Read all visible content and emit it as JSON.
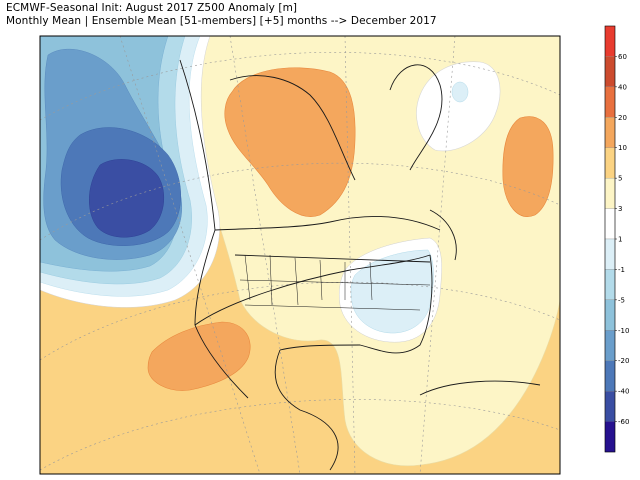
{
  "header": {
    "title_line1": "ECMWF-Seasonal Init: August 2017 Z500 Anomaly [m]",
    "title_line2": "Monthly Mean | Ensemble Mean [51-members] [+5] months --> December 2017"
  },
  "colorbar": {
    "segments": [
      {
        "label": "60",
        "color": "#cc4b2e"
      },
      {
        "label": "40",
        "color": "#e8703f"
      },
      {
        "label": "20",
        "color": "#f4a75d"
      },
      {
        "label": "10",
        "color": "#fbd383"
      },
      {
        "label": "5",
        "color": "#fdf5c6"
      },
      {
        "label": "3",
        "color": "#ffffff"
      },
      {
        "label": "1",
        "color": "#dceff7"
      },
      {
        "label": "-1",
        "color": "#b3dbea"
      },
      {
        "label": "-5",
        "color": "#8ec2db"
      },
      {
        "label": "-10",
        "color": "#6a9ecb"
      },
      {
        "label": "-20",
        "color": "#4d78b8"
      },
      {
        "label": "-40",
        "color": "#3a4ea3"
      },
      {
        "label": "-60",
        "color": "#2a2a95"
      }
    ],
    "top_color": "#e83c2f",
    "bottom_color": "#26118f"
  },
  "map": {
    "background_anomaly_color": "#fbd383",
    "warm_core_color": "#f4a75d",
    "cool_core_color": "#3a4ea3"
  }
}
